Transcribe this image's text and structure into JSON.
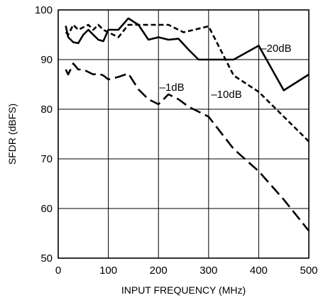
{
  "chart_data": {
    "type": "line",
    "title": "",
    "xlabel": "INPUT FREQUENCY (MHz)",
    "ylabel": "SFDR (dBFS)",
    "xlim": [
      0,
      500
    ],
    "ylim": [
      50,
      100
    ],
    "xticks": [
      0,
      100,
      200,
      300,
      400,
      500
    ],
    "yticks": [
      50,
      60,
      70,
      80,
      90,
      100
    ],
    "grid": true,
    "legend": "none",
    "series": [
      {
        "name": "–20dB",
        "style": "solid",
        "x": [
          15,
          20,
          30,
          40,
          50,
          60,
          70,
          80,
          90,
          100,
          120,
          140,
          160,
          180,
          200,
          220,
          240,
          260,
          280,
          300,
          350,
          400,
          450,
          500
        ],
        "y": [
          96.8,
          94.5,
          93.5,
          93.3,
          95,
          96,
          95,
          94,
          93.7,
          96,
          96,
          98.3,
          97,
          94,
          94.5,
          94,
          94.2,
          92,
          90,
          90,
          90,
          92.8,
          83.8,
          87
        ]
      },
      {
        "name": "–10dB",
        "style": "dash",
        "x": [
          15,
          20,
          30,
          40,
          50,
          60,
          70,
          80,
          90,
          100,
          120,
          140,
          160,
          180,
          200,
          220,
          250,
          300,
          350,
          400,
          450,
          500
        ],
        "y": [
          95.5,
          95,
          97,
          96,
          96.5,
          97,
          96,
          97,
          96,
          95.5,
          94.5,
          97,
          97,
          97,
          97,
          97,
          95.5,
          96.7,
          86.8,
          83.5,
          78.5,
          73.5
        ]
      },
      {
        "name": "–1dB",
        "style": "longdash",
        "x": [
          15,
          20,
          30,
          40,
          50,
          60,
          70,
          80,
          90,
          100,
          120,
          140,
          160,
          180,
          200,
          220,
          240,
          260,
          280,
          300,
          350,
          400,
          450,
          500
        ],
        "y": [
          88,
          87,
          89.2,
          88,
          88,
          87.5,
          87,
          87.2,
          86.8,
          86,
          86.5,
          87.2,
          84,
          82,
          81,
          83,
          82,
          80.5,
          79.5,
          78.5,
          72,
          67.5,
          61.8,
          55.5
        ]
      }
    ],
    "annotations": [
      {
        "text": "–20dB",
        "x": 404,
        "y": 91.6
      },
      {
        "text": "–10dB",
        "x": 305,
        "y": 82.3
      },
      {
        "text": "–1dB",
        "x": 202,
        "y": 83.7
      }
    ]
  }
}
